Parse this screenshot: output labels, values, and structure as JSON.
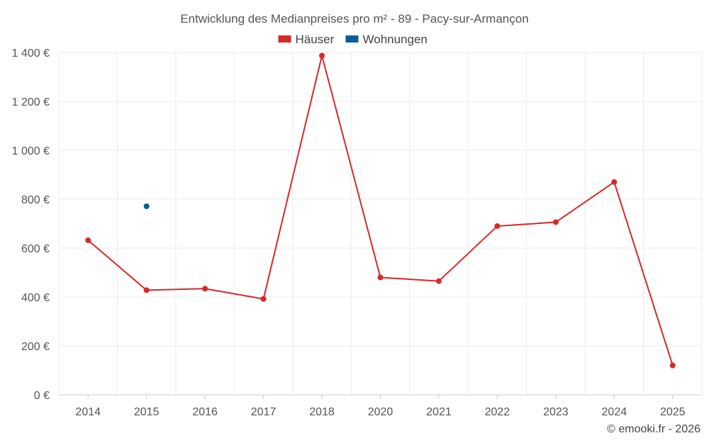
{
  "chart_data": {
    "type": "line",
    "title": "Entwicklung des Medianpreises pro m² - 89 - Pacy-sur-Armançon",
    "categories": [
      "2014",
      "2015",
      "2016",
      "2017",
      "2018",
      "2020",
      "2021",
      "2022",
      "2023",
      "2024",
      "2025"
    ],
    "series": [
      {
        "name": "Häuser",
        "color": "#d42a2a",
        "values": [
          632,
          428,
          434,
          392,
          1387,
          480,
          465,
          690,
          706,
          870,
          120
        ]
      },
      {
        "name": "Wohnungen",
        "color": "#0b5e97",
        "values": [
          null,
          771,
          null,
          null,
          null,
          null,
          null,
          null,
          null,
          null,
          null
        ]
      }
    ],
    "ylim": [
      0,
      1400
    ],
    "yticks": [
      {
        "value": 0,
        "label": "0 €"
      },
      {
        "value": 200,
        "label": "200 €"
      },
      {
        "value": 400,
        "label": "400 €"
      },
      {
        "value": 600,
        "label": "600 €"
      },
      {
        "value": 800,
        "label": "800 €"
      },
      {
        "value": 1000,
        "label": "1 000 €"
      },
      {
        "value": 1200,
        "label": "1 200 €"
      },
      {
        "value": 1400,
        "label": "1 400 €"
      }
    ],
    "xlabel": "",
    "ylabel": "",
    "grid": true,
    "legend_position": "top-center"
  },
  "footer": "© emooki.fr - 2026"
}
